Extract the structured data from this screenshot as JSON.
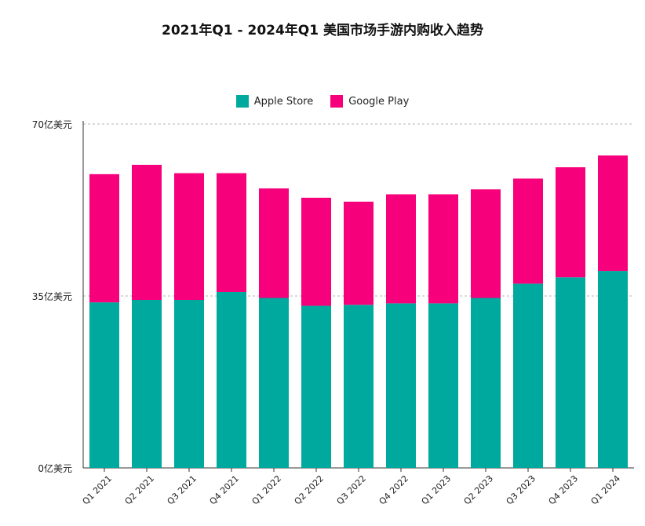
{
  "chart_data": {
    "type": "bar",
    "stacked": true,
    "title": "2021年Q1 - 2024年Q1 美国市场手游内购收入趋势",
    "categories": [
      "Q1 2021",
      "Q2 2021",
      "Q3 2021",
      "Q4 2021",
      "Q1 2022",
      "Q2 2022",
      "Q3 2022",
      "Q4 2022",
      "Q1 2023",
      "Q2 2023",
      "Q3 2023",
      "Q4 2023",
      "Q1 2024"
    ],
    "series": [
      {
        "name": "Apple Store",
        "color": "#00A99D",
        "values": [
          33.7,
          34.2,
          34.2,
          35.8,
          34.6,
          33.0,
          33.2,
          33.5,
          33.5,
          34.6,
          37.5,
          38.8,
          40.1
        ]
      },
      {
        "name": "Google Play",
        "color": "#F7007C",
        "values": [
          26.1,
          27.5,
          25.8,
          24.2,
          22.3,
          22.0,
          21.0,
          22.2,
          22.2,
          22.1,
          21.4,
          22.4,
          23.5
        ]
      }
    ],
    "y_ticks": [
      "0亿美元",
      "35亿美元",
      "70亿美元"
    ],
    "y_tick_values": [
      0,
      35,
      70
    ],
    "ylim": [
      0,
      70
    ],
    "grid": "horizontal dashed",
    "legend_position": "top-center"
  }
}
